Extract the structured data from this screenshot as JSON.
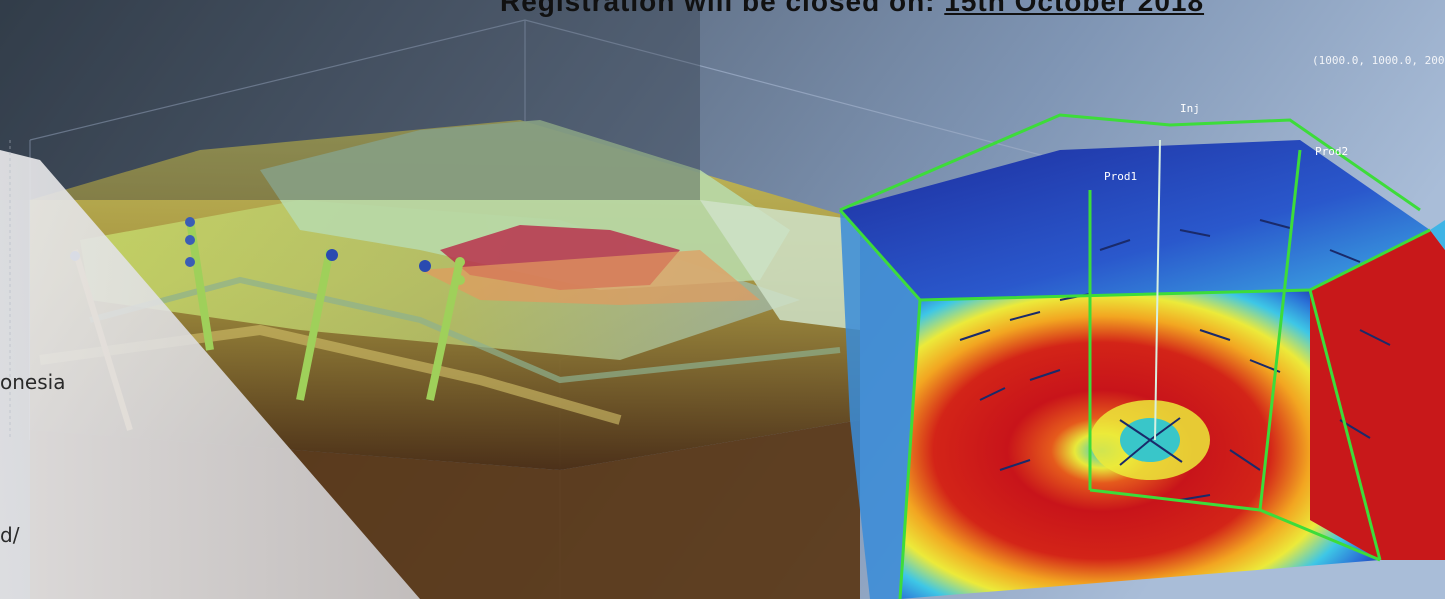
{
  "banner": {
    "prefix": "Registration will be closed on: ",
    "date": "15th October 2018"
  },
  "axis_corner_label": "(1000.0, 1000.0, 200",
  "wells": {
    "injector": "Inj",
    "producer1": "Prod1",
    "producer2": "Prod2"
  },
  "side_panel": {
    "line1": "onesia",
    "line2": "d/"
  },
  "colors": {
    "sky_top": "#55657c",
    "sky_right": "#8ea6c8",
    "hot": "#d61f1f",
    "warm": "#f0d020",
    "cool": "#38b6e0",
    "cold": "#1d3aa8",
    "grid_green": "#3ddc3a"
  }
}
